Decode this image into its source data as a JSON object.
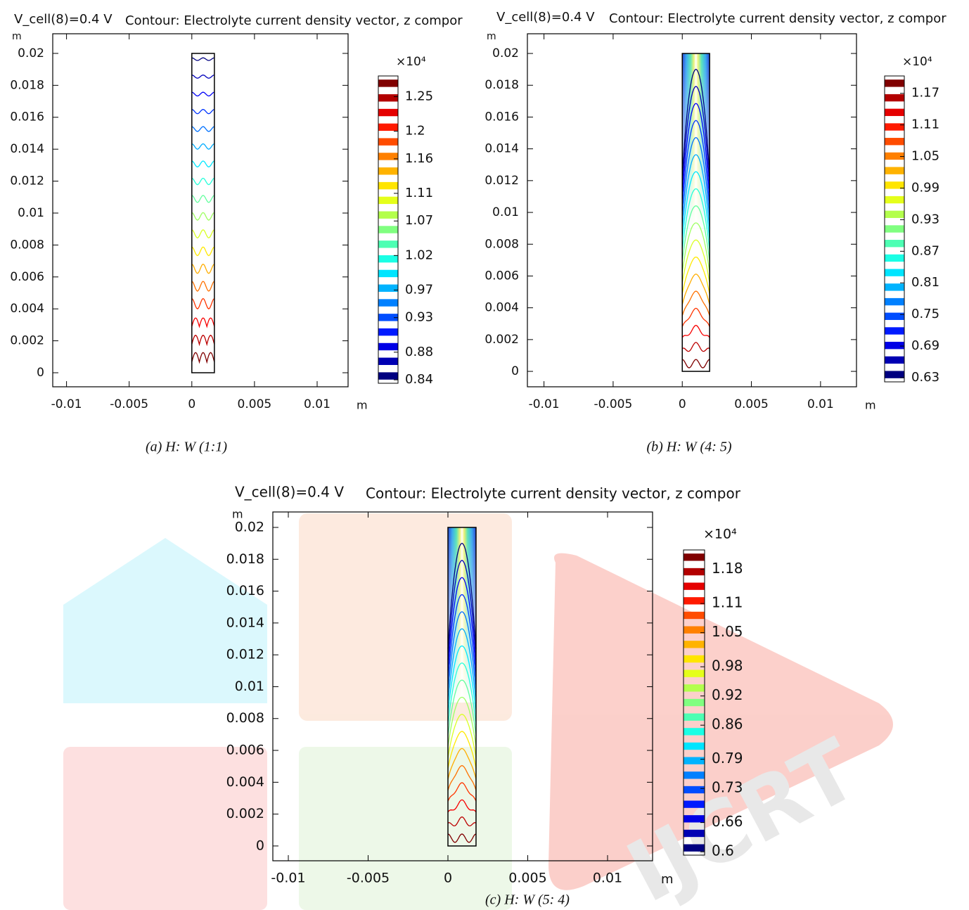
{
  "chart_data": [
    {
      "type": "contour",
      "title": "V_cell(8)=0.4 V",
      "subtitle": "Contour: Electrolyte current density vector, z compor",
      "xlabel": "m",
      "ylabel": "m",
      "xlim": [
        -0.0111,
        0.01247
      ],
      "ylim": [
        -0.00088,
        0.02123
      ],
      "xticks": [
        -0.01,
        -0.005,
        0,
        0.005,
        0.01
      ],
      "yticks": [
        0,
        0.002,
        0.004,
        0.006,
        0.008,
        0.01,
        0.012,
        0.014,
        0.016,
        0.018,
        0.02
      ],
      "colormap": "jet",
      "color_multiplier": "×10⁴",
      "clim": [
        0.835,
        1.28
      ],
      "cticks": [
        0.84,
        0.88,
        0.93,
        0.97,
        1.02,
        1.07,
        1.11,
        1.16,
        1.2,
        1.25
      ],
      "caption": "(a) H: W (1:1)"
    },
    {
      "type": "contour",
      "title": "V_cell(8)=0.4 V",
      "subtitle": "Contour: Electrolyte current density vector, z compor",
      "xlabel": "m",
      "ylabel": "m",
      "xlim": [
        -0.0112,
        0.0126
      ],
      "ylim": [
        -0.00097,
        0.02124
      ],
      "xticks": [
        -0.01,
        -0.005,
        0,
        0.005,
        0.01
      ],
      "yticks": [
        0,
        0.002,
        0.004,
        0.006,
        0.008,
        0.01,
        0.012,
        0.014,
        0.016,
        0.018,
        0.02
      ],
      "colormap": "jet",
      "color_multiplier": "×10⁴",
      "clim": [
        0.622,
        1.203
      ],
      "cticks": [
        0.63,
        0.69,
        0.75,
        0.81,
        0.87,
        0.93,
        0.99,
        1.05,
        1.11,
        1.17
      ],
      "caption": "(b) H: W (4: 5)"
    },
    {
      "type": "contour",
      "title": "V_cell(8)=0.4 V",
      "subtitle": "Contour: Electrolyte current density vector, z compor",
      "xlabel": "m",
      "ylabel": "m",
      "xlim": [
        -0.01097,
        0.01282
      ],
      "ylim": [
        -0.00093,
        0.02097
      ],
      "xticks": [
        -0.01,
        -0.005,
        0,
        0.005,
        0.01
      ],
      "yticks": [
        0,
        0.002,
        0.004,
        0.006,
        0.008,
        0.01,
        0.012,
        0.014,
        0.016,
        0.018,
        0.02
      ],
      "colormap": "jet",
      "color_multiplier": "×10⁴",
      "clim": [
        0.593,
        1.22
      ],
      "cticks": [
        0.6,
        0.66,
        0.73,
        0.79,
        0.86,
        0.92,
        0.98,
        1.05,
        1.11,
        1.18
      ],
      "caption": "(c) H: W (5: 4)",
      "watermark": "IJCRT"
    }
  ]
}
